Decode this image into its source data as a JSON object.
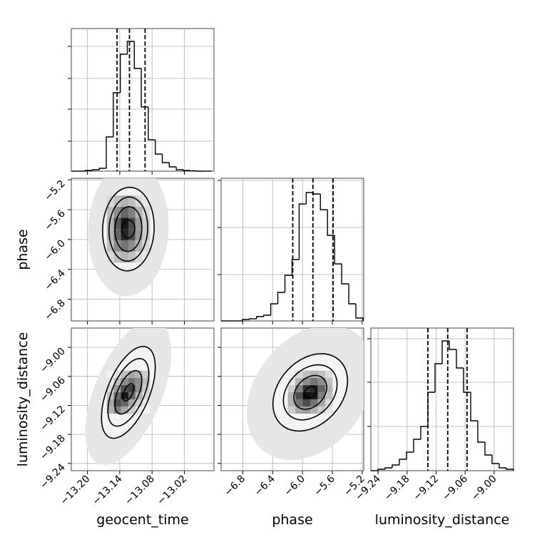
{
  "chart_data": {
    "type": "corner",
    "grid": true,
    "parameters": [
      {
        "name": "geocent_time",
        "lim": [
          -13.23,
          -12.965
        ],
        "ticks": [
          {
            "value": -13.2,
            "label": "−13.20"
          },
          {
            "value": -13.14,
            "label": "−13.14"
          },
          {
            "value": -13.08,
            "label": "−13.08"
          },
          {
            "value": -13.02,
            "label": "−13.02"
          }
        ]
      },
      {
        "name": "phase",
        "lim": [
          -7.09,
          -5.18
        ],
        "ticks": [
          {
            "value": -6.8,
            "label": "−6.8"
          },
          {
            "value": -6.4,
            "label": "−6.4"
          },
          {
            "value": -6.0,
            "label": "−6.0"
          },
          {
            "value": -5.6,
            "label": "−5.6"
          },
          {
            "value": -5.2,
            "label": "−5.2"
          }
        ]
      },
      {
        "name": "luminosity_distance",
        "lim": [
          -9.255,
          -8.96
        ],
        "ticks": [
          {
            "value": -9.24,
            "label": "−9.24"
          },
          {
            "value": -9.18,
            "label": "−9.18"
          },
          {
            "value": -9.12,
            "label": "−9.12"
          },
          {
            "value": -9.06,
            "label": "−9.06"
          },
          {
            "value": -9.0,
            "label": "−9.00"
          }
        ]
      }
    ],
    "histograms": [
      {
        "ylim": [
          0,
          1
        ],
        "yticks": [
          0.21,
          0.435,
          0.65,
          0.875
        ],
        "bins": [
          -13.23,
          -13.217,
          -13.204,
          -13.191,
          -13.178,
          -13.165,
          -13.152,
          -13.139,
          -13.126,
          -13.113,
          -13.1,
          -13.087,
          -13.074,
          -13.061,
          -13.048,
          -13.035,
          -13.022,
          -13.009,
          -12.996,
          -12.983,
          -12.97
        ],
        "values": [
          0,
          0,
          0.005,
          0.01,
          0.02,
          0.24,
          0.55,
          0.82,
          0.91,
          0.72,
          0.45,
          0.22,
          0.12,
          0.06,
          0.03,
          0.01,
          0.005,
          0.002,
          0,
          0
        ],
        "quantiles": [
          -13.145,
          -13.122,
          -13.093
        ]
      },
      {
        "ylim": [
          0,
          1
        ],
        "yticks": [
          0.325,
          0.655,
          0.985
        ],
        "bins": [
          -7.09,
          -6.995,
          -6.9,
          -6.805,
          -6.71,
          -6.615,
          -6.52,
          -6.425,
          -6.33,
          -6.235,
          -6.14,
          -6.045,
          -5.95,
          -5.855,
          -5.76,
          -5.665,
          -5.57,
          -5.475,
          -5.38,
          -5.285,
          -5.19
        ],
        "values": [
          0,
          0,
          0,
          0.01,
          0.015,
          0.03,
          0.04,
          0.12,
          0.2,
          0.32,
          0.43,
          0.82,
          0.9,
          0.89,
          0.78,
          0.6,
          0.4,
          0.26,
          0.12,
          0.02
        ],
        "quantiles": [
          -6.13,
          -5.86,
          -5.59
        ]
      },
      {
        "ylim": [
          0,
          1
        ],
        "yticks": [
          0.31,
          0.62,
          0.925
        ],
        "bins": [
          -9.255,
          -9.2403,
          -9.2255,
          -9.2108,
          -9.196,
          -9.1813,
          -9.1665,
          -9.1518,
          -9.137,
          -9.1223,
          -9.1075,
          -9.0928,
          -9.078,
          -9.0633,
          -9.0485,
          -9.0338,
          -9.019,
          -9.0043,
          -8.9895,
          -8.9748,
          -8.96
        ],
        "values": [
          0,
          0.01,
          0.02,
          0.04,
          0.08,
          0.13,
          0.22,
          0.31,
          0.55,
          0.75,
          0.91,
          0.85,
          0.72,
          0.55,
          0.35,
          0.2,
          0.11,
          0.05,
          0.02,
          0.01
        ],
        "quantiles": [
          -9.137,
          -9.096,
          -9.056
        ]
      }
    ],
    "pairs": [
      {
        "cx": -13.124,
        "cy": -5.86,
        "rho": 0.05,
        "cloud": {
          "sx": 0.075,
          "sy": 0.9
        },
        "contours": [
          {
            "sx": 0.012,
            "sy": 0.12
          },
          {
            "sx": 0.025,
            "sy": 0.3
          },
          {
            "sx": 0.036,
            "sy": 0.43
          },
          {
            "sx": 0.048,
            "sy": 0.56
          }
        ],
        "xedges": [
          -13.164,
          -13.151,
          -13.138,
          -13.124,
          -13.111,
          -13.098,
          -13.084
        ],
        "yedges": [
          -6.31,
          -6.16,
          -6.01,
          -5.86,
          -5.71,
          -5.56,
          -5.41
        ],
        "shade": [
          [
            0.15,
            0.25,
            0.3,
            0.25,
            0.15,
            0.1
          ],
          [
            0.25,
            0.45,
            0.55,
            0.45,
            0.3,
            0.15
          ],
          [
            0.3,
            0.6,
            0.85,
            0.7,
            0.4,
            0.2
          ],
          [
            0.3,
            0.65,
            0.9,
            0.7,
            0.4,
            0.2
          ],
          [
            0.25,
            0.45,
            0.6,
            0.5,
            0.3,
            0.15
          ],
          [
            0.15,
            0.25,
            0.3,
            0.25,
            0.15,
            0.1
          ]
        ]
      },
      {
        "cx": -13.124,
        "cy": -9.093,
        "rho": 0.55,
        "cloud": {
          "sx": 0.08,
          "sy": 0.15
        },
        "contours": [
          {
            "sx": 0.01,
            "sy": 0.018
          },
          {
            "sx": 0.025,
            "sy": 0.045
          },
          {
            "sx": 0.038,
            "sy": 0.07
          },
          {
            "sx": 0.05,
            "sy": 0.095
          }
        ],
        "xedges": [
          -13.164,
          -13.151,
          -13.138,
          -13.124,
          -13.111,
          -13.098,
          -13.084
        ],
        "yedges": [
          -9.137,
          -9.1222,
          -9.1074,
          -9.0926,
          -9.0778,
          -9.063,
          -9.0482
        ],
        "shade": [
          [
            0.3,
            0.5,
            0.35,
            0.2,
            0.1,
            0.05
          ],
          [
            0.35,
            0.7,
            0.6,
            0.35,
            0.2,
            0.1
          ],
          [
            0.25,
            0.6,
            0.9,
            0.6,
            0.3,
            0.15
          ],
          [
            0.15,
            0.4,
            0.7,
            0.75,
            0.45,
            0.2
          ],
          [
            0.1,
            0.25,
            0.45,
            0.55,
            0.45,
            0.25
          ],
          [
            0.05,
            0.12,
            0.25,
            0.35,
            0.3,
            0.2
          ]
        ]
      },
      {
        "cx": -5.896,
        "cy": -9.093,
        "rho": 0.3,
        "cloud": {
          "sx": 0.85,
          "sy": 0.14
        },
        "contours": [
          {
            "sx": 0.08,
            "sy": 0.012
          },
          {
            "sx": 0.22,
            "sy": 0.035
          },
          {
            "sx": 0.36,
            "sy": 0.057
          },
          {
            "sx": 0.5,
            "sy": 0.08
          }
        ],
        "xedges": [
          -6.196,
          -6.096,
          -5.996,
          -5.896,
          -5.796,
          -5.696,
          -5.596
        ],
        "yedges": [
          -9.137,
          -9.1222,
          -9.1074,
          -9.0926,
          -9.0778,
          -9.063,
          -9.0482
        ],
        "shade": [
          [
            0.2,
            0.35,
            0.4,
            0.3,
            0.2,
            0.1
          ],
          [
            0.3,
            0.55,
            0.7,
            0.55,
            0.35,
            0.15
          ],
          [
            0.3,
            0.7,
            0.95,
            0.9,
            0.5,
            0.25
          ],
          [
            0.2,
            0.5,
            0.8,
            0.85,
            0.6,
            0.3
          ],
          [
            0.1,
            0.3,
            0.45,
            0.55,
            0.45,
            0.25
          ],
          [
            0.05,
            0.15,
            0.25,
            0.3,
            0.25,
            0.15
          ]
        ]
      }
    ]
  }
}
